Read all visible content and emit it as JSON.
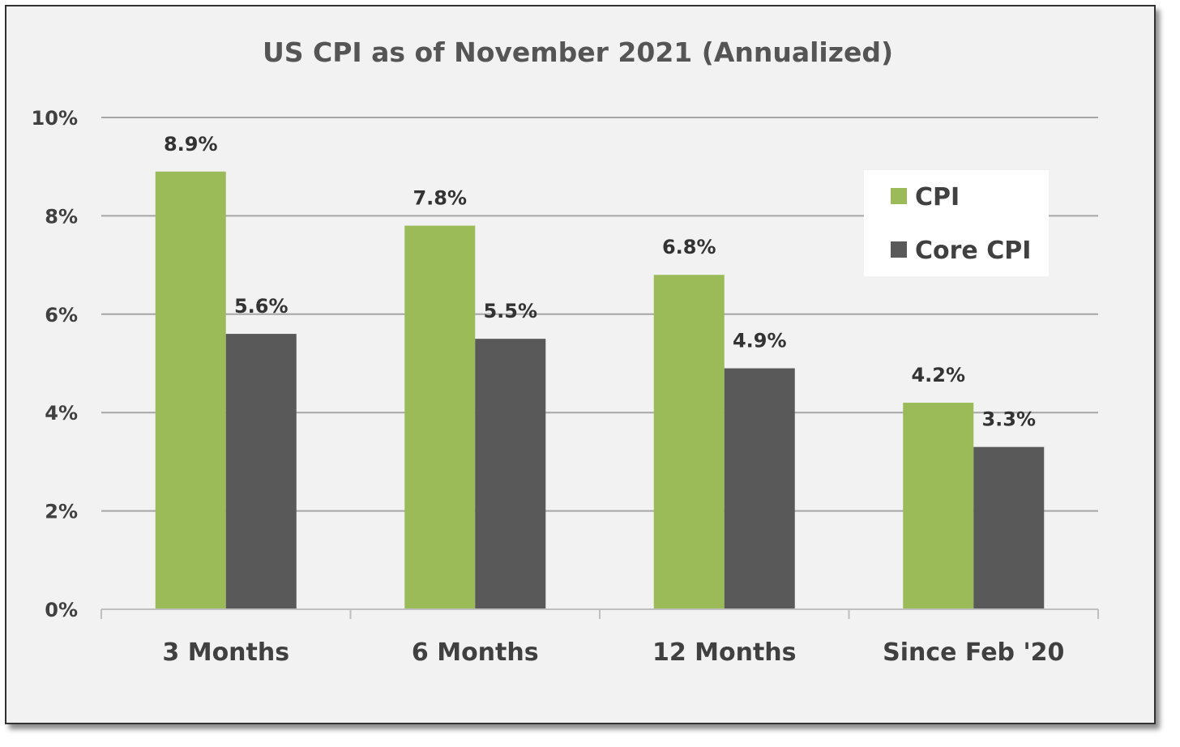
{
  "chart_data": {
    "type": "bar",
    "title": "US CPI as of November 2021 (Annualized)",
    "categories": [
      "3 Months",
      "6 Months",
      "12 Months",
      "Since Feb '20"
    ],
    "series": [
      {
        "name": "CPI",
        "color": "#9bbb59",
        "values": [
          8.9,
          7.8,
          6.8,
          4.2
        ],
        "labels": [
          "8.9%",
          "7.8%",
          "6.8%",
          "4.2%"
        ]
      },
      {
        "name": "Core CPI",
        "color": "#595959",
        "values": [
          5.6,
          5.5,
          4.9,
          3.3
        ],
        "labels": [
          "5.6%",
          "5.5%",
          "4.9%",
          "3.3%"
        ]
      }
    ],
    "ylim": [
      0,
      10
    ],
    "yticks": [
      0,
      2,
      4,
      6,
      8,
      10
    ],
    "ytick_labels": [
      "0%",
      "2%",
      "4%",
      "6%",
      "8%",
      "10%"
    ],
    "grid": true,
    "legend_position": "top-right",
    "xlabel": "",
    "ylabel": ""
  }
}
